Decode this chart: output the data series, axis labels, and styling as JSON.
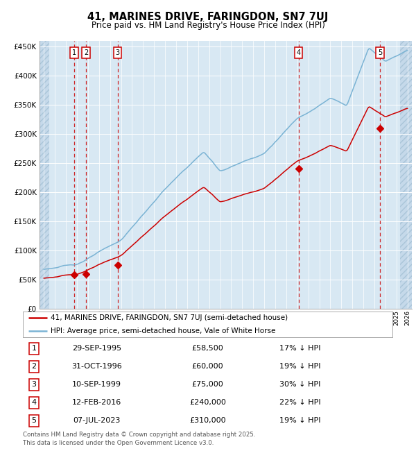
{
  "title": "41, MARINES DRIVE, FARINGDON, SN7 7UJ",
  "subtitle": "Price paid vs. HM Land Registry's House Price Index (HPI)",
  "legend_line1": "41, MARINES DRIVE, FARINGDON, SN7 7UJ (semi-detached house)",
  "legend_line2": "HPI: Average price, semi-detached house, Vale of White Horse",
  "footer_line1": "Contains HM Land Registry data © Crown copyright and database right 2025.",
  "footer_line2": "This data is licensed under the Open Government Licence v3.0.",
  "hpi_color": "#7ab3d4",
  "price_color": "#cc0000",
  "vline_color": "#cc0000",
  "plot_bg_color": "#d8e8f3",
  "grid_color": "#ffffff",
  "ylim": [
    0,
    460000
  ],
  "yticks": [
    0,
    50000,
    100000,
    150000,
    200000,
    250000,
    300000,
    350000,
    400000,
    450000
  ],
  "xlim_left": 1992.6,
  "xlim_right": 2026.4,
  "x_start_data": 1993,
  "x_end_data": 2026,
  "hatch_left_end": 1993.5,
  "hatch_right_start": 2025.3,
  "sales": [
    {
      "num": 1,
      "date": "29-SEP-1995",
      "year": 1995.75,
      "price": 58500,
      "pct": "17%",
      "dir": "↓"
    },
    {
      "num": 2,
      "date": "31-OCT-1996",
      "year": 1996.83,
      "price": 60000,
      "pct": "19%",
      "dir": "↓"
    },
    {
      "num": 3,
      "date": "10-SEP-1999",
      "year": 1999.69,
      "price": 75000,
      "pct": "30%",
      "dir": "↓"
    },
    {
      "num": 4,
      "date": "12-FEB-2016",
      "year": 2016.12,
      "price": 240000,
      "pct": "22%",
      "dir": "↓"
    },
    {
      "num": 5,
      "date": "07-JUL-2023",
      "year": 2023.52,
      "price": 310000,
      "pct": "19%",
      "dir": "↓"
    }
  ]
}
